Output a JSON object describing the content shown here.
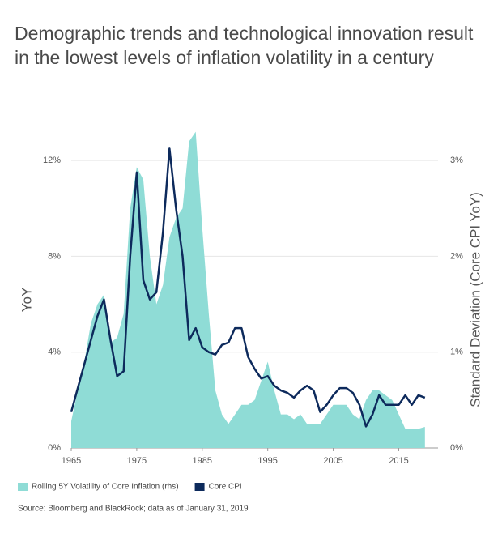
{
  "chart_data": {
    "type": "area-line",
    "title": "Demographic trends and technological innovation result in the lowest levels of inflation volatility in a century",
    "ylabel": "YoY",
    "y2label": "Standard Deviation (Core CPI YoY)",
    "source": "Source: Bloomberg and BlackRock; data as of January 31, 2019",
    "x": [
      1965,
      1966,
      1967,
      1968,
      1969,
      1970,
      1971,
      1972,
      1973,
      1974,
      1975,
      1976,
      1977,
      1978,
      1979,
      1980,
      1981,
      1982,
      1983,
      1984,
      1985,
      1986,
      1987,
      1988,
      1989,
      1990,
      1991,
      1992,
      1993,
      1994,
      1995,
      1996,
      1997,
      1998,
      1999,
      2000,
      2001,
      2002,
      2003,
      2004,
      2005,
      2006,
      2007,
      2008,
      2009,
      2010,
      2011,
      2012,
      2013,
      2014,
      2015,
      2016,
      2017,
      2018,
      2019
    ],
    "xlim": [
      1965,
      2021
    ],
    "xticks": [
      1965,
      1975,
      1985,
      1995,
      2005,
      2015
    ],
    "ylim": [
      0,
      14
    ],
    "yticks": [
      {
        "value": 0,
        "label": "0%"
      },
      {
        "value": 4,
        "label": "4%"
      },
      {
        "value": 8,
        "label": "8%"
      },
      {
        "value": 12,
        "label": "12%"
      }
    ],
    "y2lim": [
      0,
      3.5
    ],
    "y2ticks": [
      {
        "value": 0,
        "label": "0%"
      },
      {
        "value": 1,
        "label": "1%"
      },
      {
        "value": 2,
        "label": "2%"
      },
      {
        "value": 3,
        "label": "3%"
      }
    ],
    "grid": true,
    "series": [
      {
        "name": "Rolling 5Y Volatility of Core Inflation (rhs)",
        "color": "#8fdcd6",
        "axis": "y2",
        "kind": "area",
        "values": [
          0.28,
          0.6,
          0.9,
          1.3,
          1.5,
          1.6,
          1.1,
          1.15,
          1.4,
          2.5,
          2.93,
          2.8,
          2.0,
          1.5,
          1.7,
          2.2,
          2.4,
          2.5,
          3.2,
          3.3,
          2.3,
          1.4,
          0.6,
          0.35,
          0.25,
          0.35,
          0.45,
          0.45,
          0.5,
          0.7,
          0.9,
          0.6,
          0.35,
          0.35,
          0.3,
          0.35,
          0.25,
          0.25,
          0.25,
          0.35,
          0.45,
          0.45,
          0.45,
          0.35,
          0.3,
          0.5,
          0.6,
          0.6,
          0.55,
          0.5,
          0.35,
          0.2,
          0.2,
          0.2,
          0.22
        ]
      },
      {
        "name": "Core CPI",
        "color": "#0d2a5c",
        "axis": "y",
        "kind": "line",
        "values": [
          1.5,
          2.5,
          3.5,
          4.5,
          5.5,
          6.2,
          4.5,
          3.0,
          3.2,
          8,
          11.5,
          7,
          6.2,
          6.5,
          9,
          12.5,
          10,
          8,
          4.5,
          5,
          4.2,
          4.0,
          3.9,
          4.3,
          4.4,
          5.0,
          5.0,
          3.8,
          3.3,
          2.9,
          3.0,
          2.6,
          2.4,
          2.3,
          2.1,
          2.4,
          2.6,
          2.4,
          1.5,
          1.8,
          2.2,
          2.5,
          2.5,
          2.3,
          1.8,
          0.9,
          1.4,
          2.2,
          1.8,
          1.8,
          1.8,
          2.2,
          1.8,
          2.2,
          2.1
        ]
      }
    ]
  }
}
